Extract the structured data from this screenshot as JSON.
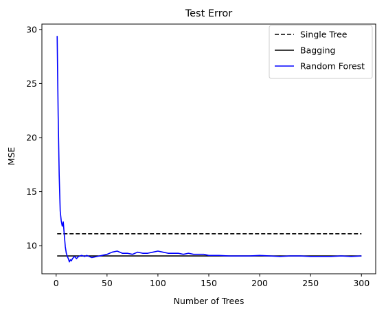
{
  "chart_data": {
    "type": "line",
    "title": "Test Error",
    "xlabel": "Number of Trees",
    "ylabel": "MSE",
    "xlim": [
      -14,
      314
    ],
    "ylim": [
      7.4,
      30.5
    ],
    "xticks": [
      0,
      50,
      100,
      150,
      200,
      250,
      300
    ],
    "yticks": [
      10,
      15,
      20,
      25,
      30
    ],
    "grid": false,
    "legend_position": "top-right",
    "series": [
      {
        "name": "Single Tree",
        "color": "#000000",
        "style": "dashed",
        "x": [
          1,
          300
        ],
        "y": [
          11.1,
          11.1
        ]
      },
      {
        "name": "Bagging",
        "color": "#000000",
        "style": "solid",
        "x": [
          1,
          300
        ],
        "y": [
          9.05,
          9.05
        ]
      },
      {
        "name": "Random Forest",
        "color": "#0000ff",
        "style": "solid",
        "x": [
          1,
          2,
          3,
          4,
          5,
          6,
          7,
          8,
          9,
          10,
          11,
          12,
          13,
          14,
          15,
          16,
          17,
          18,
          20,
          22,
          25,
          28,
          30,
          35,
          40,
          45,
          50,
          55,
          60,
          65,
          70,
          75,
          80,
          85,
          90,
          95,
          100,
          105,
          110,
          115,
          120,
          125,
          130,
          135,
          140,
          145,
          150,
          160,
          170,
          180,
          190,
          200,
          210,
          220,
          230,
          240,
          250,
          260,
          270,
          280,
          290,
          300
        ],
        "y": [
          29.4,
          22.0,
          16.5,
          13.2,
          12.3,
          11.8,
          12.2,
          11.0,
          9.9,
          9.3,
          9.0,
          8.8,
          8.5,
          8.7,
          8.6,
          8.8,
          8.9,
          9.0,
          8.8,
          9.0,
          9.1,
          9.0,
          9.1,
          8.9,
          9.0,
          9.1,
          9.2,
          9.4,
          9.5,
          9.3,
          9.3,
          9.2,
          9.4,
          9.3,
          9.3,
          9.4,
          9.5,
          9.4,
          9.3,
          9.3,
          9.3,
          9.2,
          9.3,
          9.2,
          9.2,
          9.2,
          9.1,
          9.1,
          9.05,
          9.05,
          9.05,
          9.1,
          9.05,
          9.0,
          9.05,
          9.05,
          9.0,
          9.0,
          9.0,
          9.05,
          9.0,
          9.05
        ]
      }
    ]
  }
}
